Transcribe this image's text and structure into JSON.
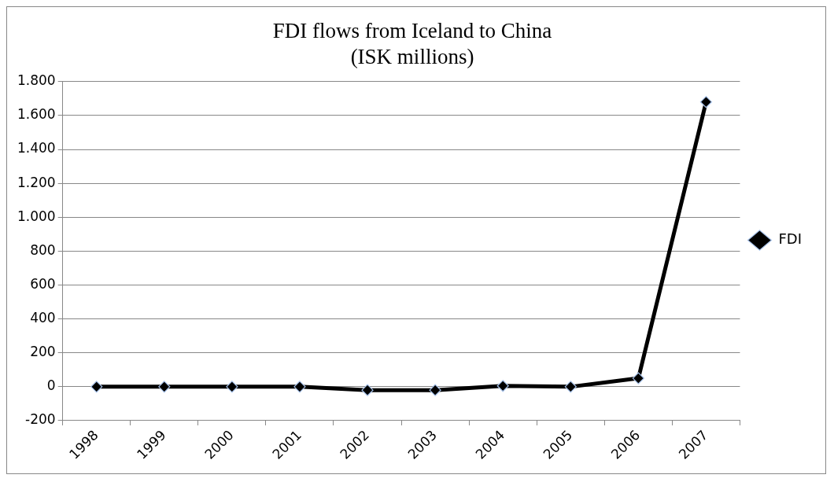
{
  "chart_data": {
    "type": "line",
    "title": [
      "FDI flows from Iceland to China",
      "(ISK millions)"
    ],
    "categories": [
      "1998",
      "1999",
      "2000",
      "2001",
      "2002",
      "2003",
      "2004",
      "2005",
      "2006",
      "2007"
    ],
    "series": [
      {
        "name": "FDI",
        "color": "#000000",
        "values": [
          0,
          0,
          0,
          0,
          -20,
          -20,
          5,
          0,
          50,
          1680
        ]
      }
    ],
    "ylim": [
      -200,
      1800
    ],
    "yticks": [
      {
        "value": -200,
        "label": "-200"
      },
      0,
      200,
      400,
      600,
      800,
      {
        "value": 1000,
        "label": "1.000"
      },
      {
        "value": 1200,
        "label": "1.200"
      },
      {
        "value": 1400,
        "label": "1.400"
      },
      {
        "value": 1600,
        "label": "1.600"
      },
      {
        "value": 1800,
        "label": "1.800"
      }
    ],
    "grid": "y",
    "legend": "right",
    "marker": "diamond",
    "line_style": "solid"
  }
}
